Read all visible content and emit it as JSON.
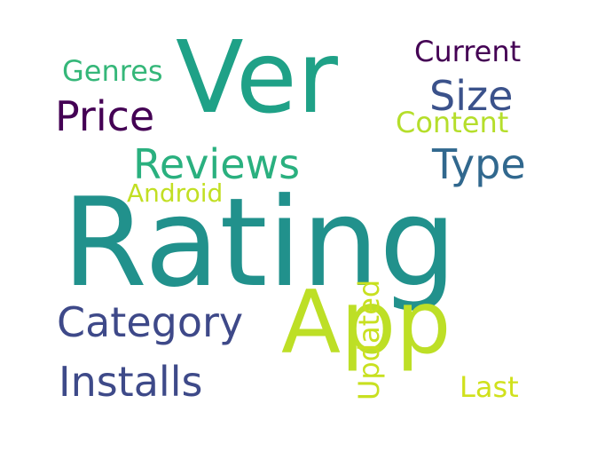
{
  "words": {
    "rating": {
      "text": "Rating",
      "color": "#21918c"
    },
    "ver": {
      "text": "Ver",
      "color": "#1fa187"
    },
    "app": {
      "text": "App",
      "color": "#bddf26"
    },
    "price": {
      "text": "Price",
      "color": "#440154"
    },
    "reviews": {
      "text": "Reviews",
      "color": "#2ab07f"
    },
    "size": {
      "text": "Size",
      "color": "#3b528b"
    },
    "type": {
      "text": "Type",
      "color": "#31688e"
    },
    "category": {
      "text": "Category",
      "color": "#3e4989"
    },
    "installs": {
      "text": "Installs",
      "color": "#3e4a89"
    },
    "current": {
      "text": "Current",
      "color": "#440154"
    },
    "content": {
      "text": "Content",
      "color": "#b5de2b"
    },
    "genres": {
      "text": "Genres",
      "color": "#35b779"
    },
    "android": {
      "text": "Android",
      "color": "#c2df23"
    },
    "last": {
      "text": "Last",
      "color": "#d0e11c"
    },
    "updated": {
      "text": "Updated",
      "color": "#c8e020"
    }
  }
}
